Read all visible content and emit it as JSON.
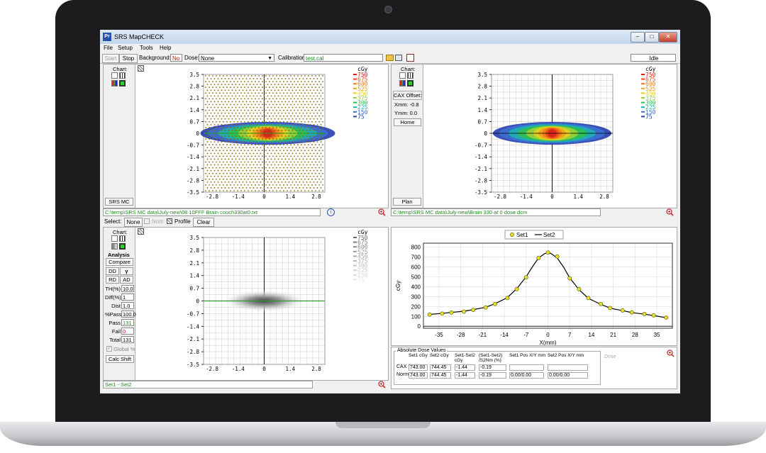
{
  "window": {
    "title": "SRS MapCHECK",
    "icon_text": "Pr",
    "controls": [
      "–",
      "□",
      "✕"
    ]
  },
  "menu": [
    "File",
    "Setup",
    "Tools",
    "Help"
  ],
  "toolbar": {
    "start": "Start",
    "stop": "Stop",
    "background_label": "Background:",
    "background_value": "No",
    "dose_label": "Dose:",
    "dose_value": "None",
    "calibration_label": "Calibration:",
    "calibration_value": "test.cal",
    "status": "Idle"
  },
  "colors": {
    "levels": [
      "#d4241a",
      "#e84a1a",
      "#f07a18",
      "#f0a020",
      "#e8d020",
      "#9ad038",
      "#30c050",
      "#20b0b0",
      "#3a70d0",
      "#2a40b0"
    ],
    "gray_levels": [
      "#6a6a6a",
      "#7a7a7a",
      "#8a8a8a",
      "#9a9a9a",
      "#aaaaaa",
      "#b8b8b8",
      "#c4c4c4",
      "#d0d0d0",
      "#dcdcdc",
      "#e6e6e6"
    ]
  },
  "legend": {
    "unit": "cGy",
    "levels": [
      "750",
      "675",
      "600",
      "525",
      "450",
      "375",
      "300",
      "225",
      "150",
      "75"
    ]
  },
  "map_axis": {
    "y_ticks": [
      "3.5",
      "2.8",
      "2.1",
      "1.4",
      "0.7",
      "0",
      "-0.7",
      "-1.4",
      "-2.1",
      "-2.8",
      "-3.5"
    ],
    "x_ticks": [
      "-2.8",
      "-1.4",
      "0",
      "1.4",
      "2.8"
    ]
  },
  "panel_tl": {
    "chart_label": "Chart:",
    "bottom_button": "SRS MC",
    "path": "C:\\temp\\SRS MC data\\July-new\\08 10FFF Brain couch330at0.txt"
  },
  "select_bar": {
    "label": "Select:",
    "none": "None",
    "nom": "Nom",
    "profile": "Profile",
    "clear": "Clear"
  },
  "panel_tr": {
    "chart_label": "Chart:",
    "cax_offset": "CAX Offset:",
    "xmm": "Xmm: -0.8",
    "ymm": "Ymm: 0.0",
    "home": "Home",
    "bottom_button": "Plan",
    "path": "C:\\temp\\SRS MC data\\July-new\\Brain 330 at 0 dose.dcm"
  },
  "panel_bl": {
    "chart_label": "Chart:",
    "analysis": "Analysis",
    "compare": "Compare",
    "dd": "DD",
    "gamma": "γ",
    "rd": "RD",
    "ad": "AD",
    "fields": [
      {
        "label": "TH(%)",
        "value": "10.0"
      },
      {
        "label": "Diff(%)",
        "value": "1"
      },
      {
        "label": "Dist",
        "value": "1.0"
      },
      {
        "label": "%Pass",
        "value": "100.0"
      },
      {
        "label": "Pass",
        "value": "131"
      },
      {
        "label": "Fail",
        "value": "0"
      },
      {
        "label": "Total",
        "value": "131"
      }
    ],
    "global": "Global %",
    "calc_shift": "Calc Shift",
    "status": "Set1 - Set2"
  },
  "profile_chart": {
    "legend": [
      "Set1",
      "Set2"
    ],
    "ylabel": "cGy",
    "xlabel": "X(mm)",
    "y_ticks": [
      "800",
      "700",
      "600",
      "500",
      "400",
      "300",
      "200",
      "100",
      "0"
    ],
    "x_ticks": [
      "-35",
      "-28",
      "-21",
      "-14",
      "-7",
      "0",
      "7",
      "14",
      "21",
      "28",
      "35"
    ]
  },
  "chart_data": {
    "type": "line",
    "xlabel": "X(mm)",
    "ylabel": "cGy",
    "xlim": [
      -40,
      40
    ],
    "ylim": [
      -20,
      840
    ],
    "grid": true,
    "legend_position": "top",
    "series": [
      {
        "name": "Set1",
        "style": "markers",
        "x": [
          -38,
          -34,
          -31,
          -27,
          -24,
          -20,
          -17,
          -13,
          -10,
          -7,
          -3,
          0,
          3,
          7,
          10,
          13,
          17,
          20,
          24,
          27,
          31,
          34,
          38
        ],
        "values": [
          118,
          128,
          138,
          148,
          165,
          190,
          225,
          285,
          375,
          495,
          690,
          745,
          705,
          485,
          375,
          285,
          225,
          185,
          160,
          140,
          125,
          110,
          88
        ]
      },
      {
        "name": "Set2",
        "style": "line",
        "x": [
          -38,
          -34,
          -31,
          -27,
          -24,
          -20,
          -17,
          -13,
          -10,
          -7,
          -5,
          -3,
          -1,
          0,
          1,
          3,
          5,
          7,
          10,
          13,
          17,
          20,
          24,
          27,
          31,
          34,
          38
        ],
        "values": [
          120,
          130,
          140,
          152,
          168,
          192,
          228,
          290,
          380,
          500,
          600,
          690,
          735,
          744,
          735,
          690,
          600,
          490,
          370,
          282,
          222,
          183,
          158,
          138,
          122,
          108,
          86
        ]
      }
    ]
  },
  "dose_values": {
    "title": "Absolute Dose Values",
    "dose_label": "Dose",
    "headers": [
      "",
      "Set1 cGy",
      "Set2 cGy",
      "Set1-Set2 cGy",
      "(Set1-Set2) /S2Nm (%)",
      "Set1 Pos X/Y mm",
      "Set2 Pos X/Y mm"
    ],
    "rows": [
      [
        "CAX",
        "743.00",
        "744.45",
        "-1.44",
        "-0.19",
        "",
        ""
      ],
      [
        "Norm",
        "743.00",
        "744.45",
        "-1.44",
        "-0.19",
        "0.00/0.00",
        "0.00/0.00"
      ]
    ]
  }
}
